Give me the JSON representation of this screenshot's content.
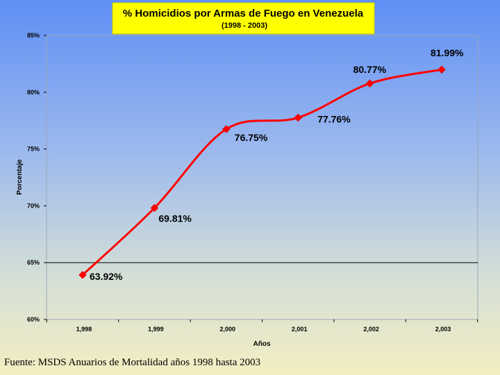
{
  "chart_data": {
    "type": "line",
    "title": "% Homicidios por Armas de Fuego en Venezuela",
    "subtitle": "(1998 - 2003)",
    "xlabel": "Años",
    "ylabel": "Porcentaje",
    "categories": [
      "1,998",
      "1,999",
      "2,000",
      "2,001",
      "2,002",
      "2,003"
    ],
    "values": [
      63.92,
      69.81,
      76.75,
      77.76,
      80.77,
      81.99
    ],
    "data_labels": [
      "63.92%",
      "69.81%",
      "76.75%",
      "77.76%",
      "80.77%",
      "81.99%"
    ],
    "ylim": [
      60,
      85
    ],
    "y_ticks": [
      60,
      65,
      70,
      75,
      80,
      85
    ],
    "y_tick_labels": [
      "60%",
      "65%",
      "70%",
      "75%",
      "80%",
      "85%"
    ],
    "reference_line": 65,
    "grid": false,
    "line_color": "#ff0000",
    "marker_color": "#ff0000",
    "title_box_color": "#ffff00"
  },
  "footer": {
    "source": "Fuente: MSDS Anuarios de Mortalidad años 1998 hasta 2003"
  }
}
